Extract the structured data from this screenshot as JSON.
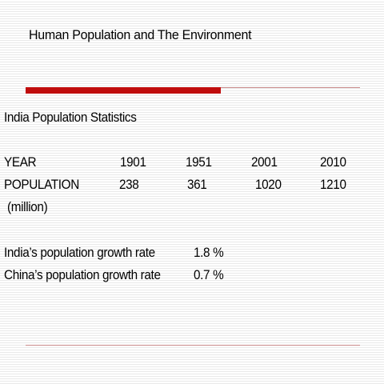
{
  "title": "Human Population and The Environment",
  "subtitle": "India Population Statistics",
  "table": {
    "year_label": "YEAR",
    "years": [
      "1901",
      "1951",
      "2001",
      "2010"
    ],
    "population_label": "POPULATION",
    "population_unit": "(million)",
    "populations": [
      "238",
      "361",
      "1020",
      "1210"
    ]
  },
  "growth": [
    {
      "label": "India’s  population growth rate",
      "value": "1.8 %"
    },
    {
      "label": "China’s population growth rate",
      "value": "0.7 %"
    }
  ],
  "colors": {
    "accent": "#c00d0d",
    "thin_rule": "#c98a8a"
  }
}
